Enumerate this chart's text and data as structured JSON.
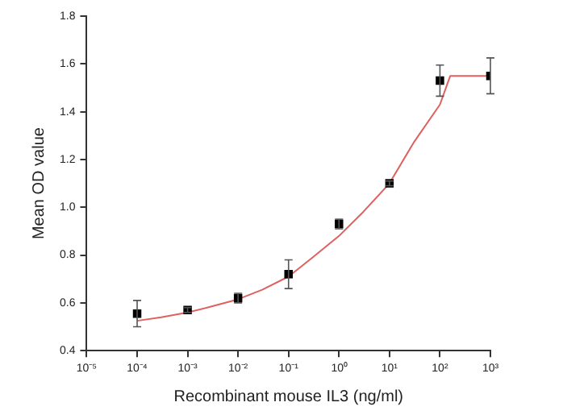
{
  "chart_data": {
    "type": "scatter",
    "xlabel": "Recombinant mouse IL3 (ng/ml)",
    "ylabel": "Mean OD value",
    "log": "x",
    "grid": false,
    "legend": false,
    "xlim": [
      1e-05,
      1000
    ],
    "ylim": [
      0.4,
      1.8
    ],
    "xticks": [
      {
        "value": 1e-05,
        "label": "10⁻⁵"
      },
      {
        "value": 0.0001,
        "label": "10⁻⁴"
      },
      {
        "value": 0.001,
        "label": "10⁻³"
      },
      {
        "value": 0.01,
        "label": "10⁻²"
      },
      {
        "value": 0.1,
        "label": "10⁻¹"
      },
      {
        "value": 1,
        "label": "10⁰"
      },
      {
        "value": 10,
        "label": "10¹"
      },
      {
        "value": 100,
        "label": "10²"
      },
      {
        "value": 1000,
        "label": "10³"
      }
    ],
    "yticks": [
      0.4,
      0.6,
      0.8,
      {
        "value": 1,
        "label": "1.0"
      },
      1.2,
      1.4,
      1.6,
      1.8
    ],
    "series": [
      {
        "marker": "square",
        "color": "#000000",
        "x": [
          0.0001,
          0.001,
          0.01,
          0.1,
          1,
          10,
          100,
          1000
        ],
        "values": [
          0.555,
          0.57,
          0.62,
          0.72,
          0.93,
          1.1,
          1.53,
          1.55
        ],
        "errors": [
          0.055,
          0.01,
          0.02,
          0.06,
          0.02,
          0.01,
          0.065,
          0.075
        ]
      },
      {
        "type": "line",
        "marker": "none",
        "color": "#e06060",
        "line_style": "solid",
        "x": [
          0.0001,
          0.0003,
          0.001,
          0.003,
          0.01,
          0.03,
          0.1,
          0.3,
          1,
          3,
          10,
          30,
          100,
          160,
          1000
        ],
        "values": [
          0.525,
          0.54,
          0.56,
          0.585,
          0.615,
          0.655,
          0.71,
          0.79,
          0.88,
          0.98,
          1.1,
          1.27,
          1.43,
          1.55,
          1.55
        ]
      }
    ]
  }
}
